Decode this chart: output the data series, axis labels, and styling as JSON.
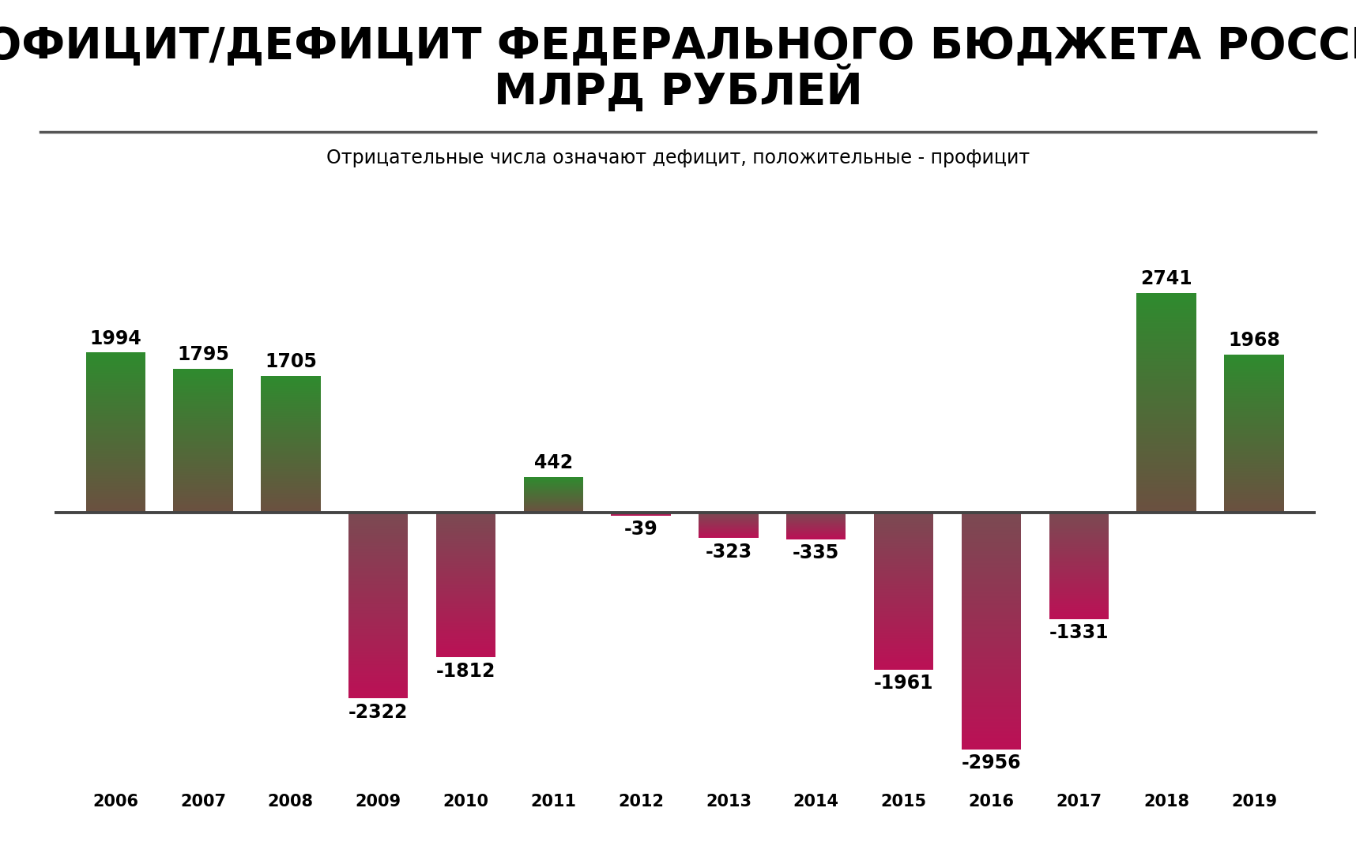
{
  "title_line1": "ПРОФИЦИТ/ДЕФИЦИТ ФЕДЕРАЛЬНОГО БЮДЖЕТА РОССИИ,",
  "title_line2": "МЛРД РУБЛЕЙ",
  "subtitle": "Отрицательные числа означают дефицит, положительные - профицит",
  "years": [
    2006,
    2007,
    2008,
    2009,
    2010,
    2011,
    2012,
    2013,
    2014,
    2015,
    2016,
    2017,
    2018,
    2019
  ],
  "values": [
    1994,
    1795,
    1705,
    -2322,
    -1812,
    442,
    -39,
    -323,
    -335,
    -1961,
    -2956,
    -1331,
    2741,
    1968
  ],
  "pos_color_top": "#2e8b2e",
  "pos_color_bottom": "#6b5040",
  "neg_color_top": "#7a4a52",
  "neg_color_bottom": "#bb1055",
  "background_color": "#ffffff",
  "bar_width": 0.68,
  "title_fontsize": 40,
  "subtitle_fontsize": 17,
  "label_fontsize": 17,
  "axis_fontsize": 15,
  "ylim": [
    -3400,
    3200
  ]
}
